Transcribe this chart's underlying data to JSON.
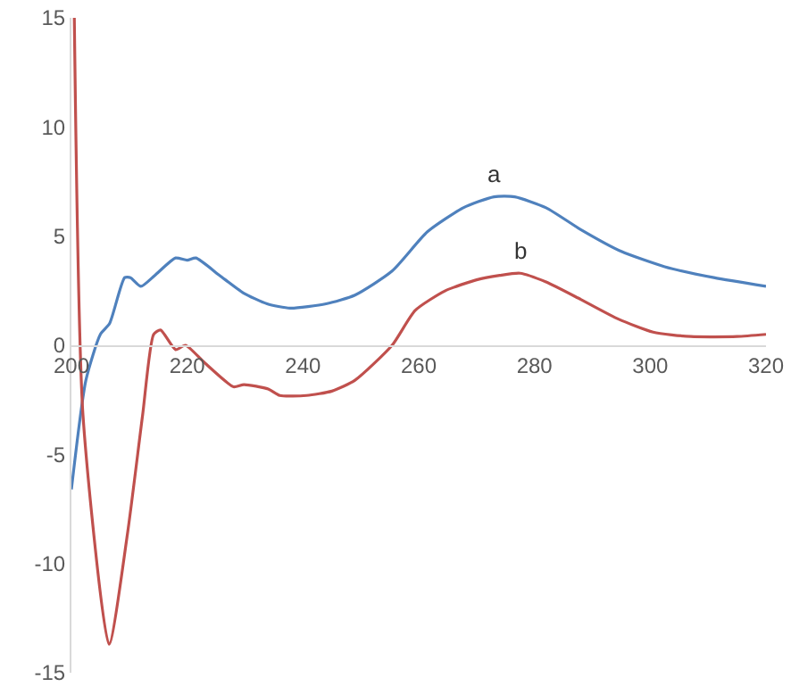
{
  "chart_data": {
    "type": "line",
    "xlim": [
      200,
      320
    ],
    "ylim": [
      -15,
      15
    ],
    "xticks": [
      200,
      220,
      240,
      260,
      280,
      300,
      320
    ],
    "yticks": [
      -15,
      -10,
      -5,
      0,
      5,
      10,
      15
    ],
    "grid": false,
    "marker": "none",
    "line_style": "solid",
    "series": [
      {
        "name": "a",
        "color": "#4f81bd",
        "x": [
          200,
          202.5,
          205,
          206.6,
          209.2,
          210.2,
          212,
          214.4,
          218,
          220,
          221.5,
          225.6,
          229.7,
          233.8,
          237.8,
          244,
          249,
          255.4,
          261.5,
          267.7,
          273,
          276.6,
          282,
          288,
          295,
          302.5,
          311,
          320
        ],
        "values": [
          -6.6,
          -1.6,
          0.5,
          1.0,
          3.1,
          3.1,
          2.7,
          3.2,
          4.0,
          3.9,
          4.0,
          3.2,
          2.4,
          1.9,
          1.7,
          1.9,
          2.3,
          3.4,
          5.2,
          6.3,
          6.8,
          6.8,
          6.3,
          5.3,
          4.3,
          3.6,
          3.1,
          2.7
        ]
      },
      {
        "name": "b",
        "color": "#c0504d",
        "x": [
          200.5,
          202,
          206.5,
          209.7,
          212.3,
          214.2,
          215.4,
          218,
          219.7,
          223,
          228,
          229.8,
          234,
          236,
          240.6,
          245,
          249,
          255.4,
          259.4,
          264.6,
          270,
          274,
          277.5,
          282,
          288,
          294.5,
          300.5,
          307,
          315,
          320
        ],
        "values": [
          15,
          -3.2,
          -13.7,
          -8.6,
          -3.2,
          0.5,
          0.7,
          -0.2,
          0.0,
          -0.8,
          -1.9,
          -1.8,
          -2.0,
          -2.3,
          -2.3,
          -2.1,
          -1.6,
          0,
          1.6,
          2.5,
          3.0,
          3.2,
          3.3,
          2.9,
          2.1,
          1.2,
          0.6,
          0.4,
          0.4,
          0.5
        ]
      }
    ]
  }
}
